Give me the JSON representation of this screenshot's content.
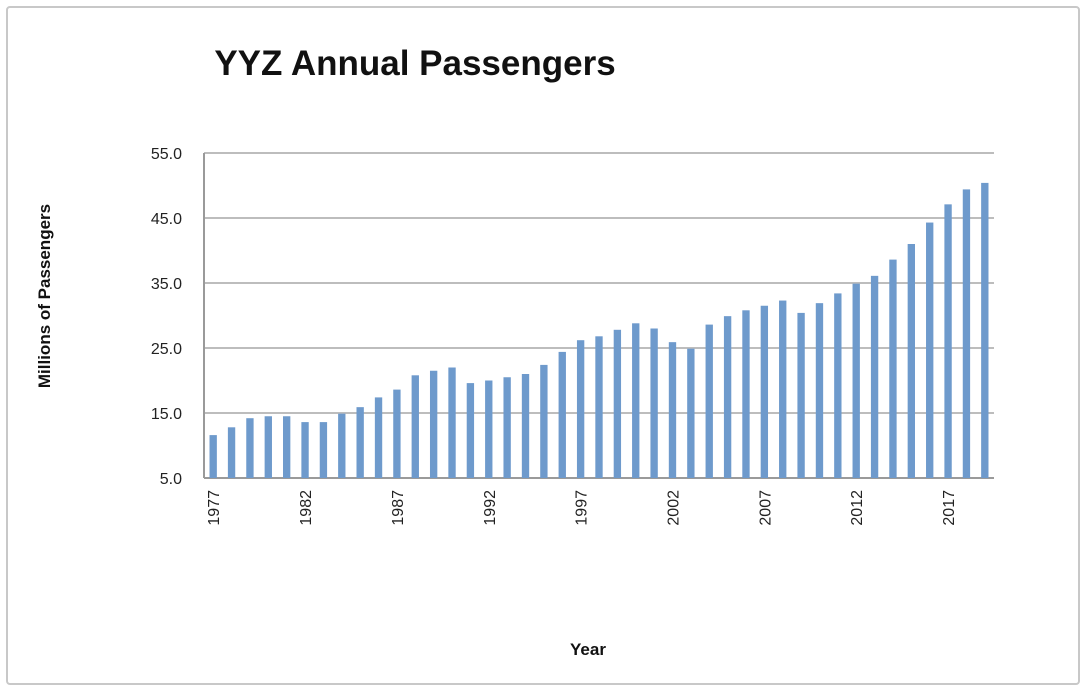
{
  "chart_data": {
    "type": "bar",
    "title": "YYZ Annual Passengers",
    "xlabel": "Year",
    "ylabel": "Millions of Passengers",
    "ylim": [
      5,
      55
    ],
    "y_ticks": [
      "5.0",
      "15.0",
      "25.0",
      "35.0",
      "45.0",
      "55.0"
    ],
    "x_tick_labels": [
      "1977",
      "1982",
      "1987",
      "1992",
      "1997",
      "2002",
      "2007",
      "2012",
      "2017"
    ],
    "categories": [
      "1977",
      "1978",
      "1979",
      "1980",
      "1981",
      "1982",
      "1983",
      "1984",
      "1985",
      "1986",
      "1987",
      "1988",
      "1989",
      "1990",
      "1991",
      "1992",
      "1993",
      "1994",
      "1995",
      "1996",
      "1997",
      "1998",
      "1999",
      "2000",
      "2001",
      "2002",
      "2003",
      "2004",
      "2005",
      "2006",
      "2007",
      "2008",
      "2009",
      "2010",
      "2011",
      "2012",
      "2013",
      "2014",
      "2015",
      "2016",
      "2017",
      "2018",
      "2019"
    ],
    "values": [
      11.6,
      12.8,
      14.2,
      14.5,
      14.5,
      13.6,
      13.6,
      14.9,
      15.9,
      17.4,
      18.6,
      20.8,
      21.5,
      22.0,
      19.6,
      20.0,
      20.5,
      21.0,
      22.4,
      24.4,
      26.2,
      26.8,
      27.8,
      28.8,
      28.0,
      25.9,
      24.9,
      28.6,
      29.9,
      30.8,
      31.5,
      32.3,
      30.4,
      31.9,
      33.4,
      34.9,
      36.1,
      38.6,
      41.0,
      44.3,
      47.1,
      49.4,
      50.4
    ],
    "grid": true,
    "legend": "none",
    "colors": {
      "bar": "#6e9acc",
      "grid": "#bdbdbd",
      "axis": "#9a9a9a"
    }
  }
}
